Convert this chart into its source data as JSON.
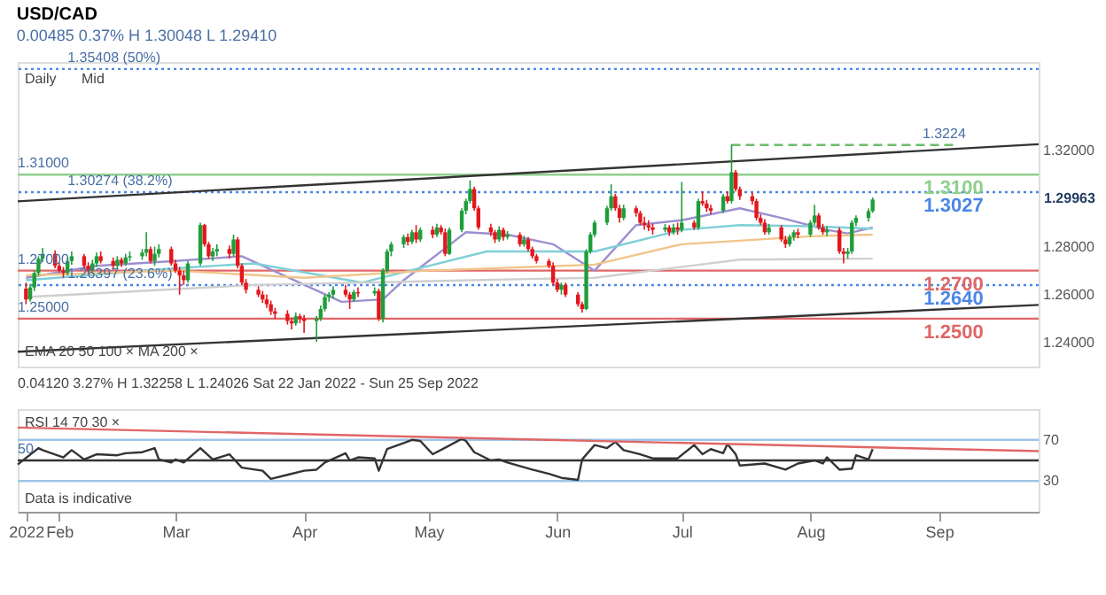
{
  "chart_data": [
    {
      "type": "candlestick",
      "title": "USD/CAD",
      "subtitle": "0.00485 0.37% H 1.30048 L 1.29410",
      "colors": [
        "#e4161c",
        "#1e9e3a",
        "#1e9e3a",
        "#1e9e3a",
        "#1e9e3a",
        "#e4161c",
        "#e4161c",
        "#e4161c",
        "#1e9e3a",
        "#1e9e3a",
        "#e4161c",
        "#e4161c",
        "#1e9e3a",
        "#1e9e3a",
        "#e4161c",
        "#e4161c",
        "#1e9e3a",
        "#e4161c",
        "#1e9e3a",
        "#1e9e3a",
        "#1e9e3a",
        "#1e9e3a",
        "#e4161c",
        "#1e9e3a",
        "#1e9e3a",
        "#e4161c",
        "#e4161c",
        "#e4161c",
        "#e4161c",
        "#1e9e3a",
        "#1e9e3a",
        "#e4161c",
        "#e4161c",
        "#1e9e3a",
        "#1e9e3a",
        "#e4161c",
        "#1e9e3a",
        "#e4161c",
        "#e4161c",
        "#e4161c",
        "#e4161c",
        "#e4161c",
        "#e4161c",
        "#e4161c",
        "#e4161c",
        "#e4161c",
        "#e4161c",
        "#1e9e3a",
        "#e4161c",
        "#e4161c",
        "#1e9e3a",
        "#1e9e3a",
        "#1e9e3a",
        "#1e9e3a",
        "#1e9e3a",
        "#e4161c",
        "#e4161c",
        "#1e9e3a",
        "#e4161c",
        "#1e9e3a",
        "#e4161c",
        "#1e9e3a",
        "#1e9e3a",
        "#1e9e3a",
        "#1e9e3a",
        "#e4161c",
        "#1e9e3a",
        "#e4161c",
        "#1e9e3a",
        "#e4161c",
        "#1e9e3a",
        "#e4161c",
        "#e4161c",
        "#1e9e3a",
        "#1e9e3a",
        "#1e9e3a",
        "#1e9e3a",
        "#e4161c",
        "#e4161c",
        "#e4161c",
        "#e4161c",
        "#1e9e3a",
        "#e4161c",
        "#1e9e3a",
        "#e4161c",
        "#1e9e3a",
        "#e4161c",
        "#e4161c",
        "#e4161c",
        "#e4161c",
        "#e4161c",
        "#e4161c",
        "#1e9e3a",
        "#e4161c",
        "#e4161c",
        "#e4161c",
        "#1e9e3a",
        "#1e9e3a",
        "#1e9e3a",
        "#1e9e3a",
        "#1e9e3a",
        "#e4161c",
        "#e4161c",
        "#1e9e3a",
        "#e4161c",
        "#e4161c",
        "#e4161c",
        "#e4161c",
        "#e4161c",
        "#1e9e3a",
        "#e4161c",
        "#1e9e3a",
        "#e4161c",
        "#1e9e3a",
        "#e4161c",
        "#1e9e3a",
        "#e4161c",
        "#e4161c",
        "#e4161c",
        "#1e9e3a",
        "#e4161c",
        "#1e9e3a",
        "#e4161c",
        "#e4161c",
        "#e4161c",
        "#e4161c",
        "#e4161c",
        "#e4161c",
        "#1e9e3a",
        "#e4161c",
        "#e4161c",
        "#1e9e3a",
        "#1e9e3a",
        "#e4161c",
        "#1e9e3a",
        "#1e9e3a",
        "#e4161c",
        "#e4161c",
        "#1e9e3a",
        "#e4161c",
        "#e4161c",
        "#1e9e3a",
        "#1e9e3a",
        "#1e9e3a",
        "#1e9e3a",
        "#1e9e3a"
      ],
      "x": [
        "2022-01-24",
        "2022-01-25",
        "2022-01-26",
        "2022-01-27",
        "2022-01-28",
        "2022-01-31",
        "2022-02-01",
        "2022-02-02",
        "2022-02-03",
        "2022-02-04",
        "2022-02-07",
        "2022-02-08",
        "2022-02-09",
        "2022-02-10",
        "2022-02-11",
        "2022-02-14",
        "2022-02-15",
        "2022-02-16",
        "2022-02-17",
        "2022-02-18",
        "2022-02-21",
        "2022-02-22",
        "2022-02-23",
        "2022-02-24",
        "2022-02-25",
        "2022-02-28",
        "2022-03-01",
        "2022-03-02",
        "2022-03-03",
        "2022-03-04",
        "2022-03-07",
        "2022-03-08",
        "2022-03-09",
        "2022-03-10",
        "2022-03-11",
        "2022-03-14",
        "2022-03-15",
        "2022-03-16",
        "2022-03-17",
        "2022-03-18",
        "2022-03-21",
        "2022-03-22",
        "2022-03-23",
        "2022-03-24",
        "2022-03-25",
        "2022-03-28",
        "2022-03-29",
        "2022-03-30",
        "2022-03-31",
        "2022-04-01",
        "2022-04-04",
        "2022-04-05",
        "2022-04-06",
        "2022-04-07",
        "2022-04-08",
        "2022-04-11",
        "2022-04-12",
        "2022-04-13",
        "2022-04-14",
        "2022-04-18",
        "2022-04-19",
        "2022-04-20",
        "2022-04-21",
        "2022-04-22",
        "2022-04-25",
        "2022-04-26",
        "2022-04-27",
        "2022-04-28",
        "2022-04-29",
        "2022-05-02",
        "2022-05-03",
        "2022-05-04",
        "2022-05-05",
        "2022-05-06",
        "2022-05-09",
        "2022-05-10",
        "2022-05-11",
        "2022-05-12",
        "2022-05-13",
        "2022-05-16",
        "2022-05-17",
        "2022-05-18",
        "2022-05-19",
        "2022-05-20",
        "2022-05-23",
        "2022-05-24",
        "2022-05-25",
        "2022-05-26",
        "2022-05-27",
        "2022-05-30",
        "2022-05-31",
        "2022-06-01",
        "2022-06-02",
        "2022-06-03",
        "2022-06-06",
        "2022-06-07",
        "2022-06-08",
        "2022-06-09",
        "2022-06-10",
        "2022-06-13",
        "2022-06-14",
        "2022-06-15",
        "2022-06-16",
        "2022-06-17",
        "2022-06-20",
        "2022-06-21",
        "2022-06-22",
        "2022-06-23",
        "2022-06-24",
        "2022-06-27",
        "2022-06-28",
        "2022-06-29",
        "2022-06-30",
        "2022-07-01",
        "2022-07-04",
        "2022-07-05",
        "2022-07-06",
        "2022-07-07",
        "2022-07-08",
        "2022-07-11",
        "2022-07-12",
        "2022-07-13",
        "2022-07-14",
        "2022-07-15",
        "2022-07-18",
        "2022-07-19",
        "2022-07-20",
        "2022-07-21",
        "2022-07-22",
        "2022-07-25",
        "2022-07-26",
        "2022-07-27",
        "2022-07-28",
        "2022-07-29",
        "2022-08-01",
        "2022-08-02",
        "2022-08-03",
        "2022-08-04",
        "2022-08-05",
        "2022-08-08",
        "2022-08-09",
        "2022-08-10",
        "2022-08-11",
        "2022-08-12",
        "2022-08-15",
        "2022-08-16"
      ],
      "ohlc": [
        [
          1.2625,
          1.265,
          1.256,
          1.258
        ],
        [
          1.258,
          1.2645,
          1.257,
          1.263
        ],
        [
          1.263,
          1.27,
          1.2615,
          1.269
        ],
        [
          1.269,
          1.276,
          1.268,
          1.275
        ],
        [
          1.275,
          1.2795,
          1.2735,
          1.277
        ],
        [
          1.277,
          1.2785,
          1.271,
          1.272
        ],
        [
          1.272,
          1.2735,
          1.269,
          1.27
        ],
        [
          1.27,
          1.2715,
          1.267,
          1.269
        ],
        [
          1.269,
          1.2755,
          1.268,
          1.274
        ],
        [
          1.274,
          1.278,
          1.2725,
          1.276
        ],
        [
          1.276,
          1.277,
          1.271,
          1.272
        ],
        [
          1.272,
          1.2735,
          1.269,
          1.27
        ],
        [
          1.27,
          1.2745,
          1.269,
          1.273
        ],
        [
          1.273,
          1.2775,
          1.2715,
          1.276
        ],
        [
          1.276,
          1.278,
          1.273,
          1.274
        ],
        [
          1.274,
          1.2755,
          1.2705,
          1.272
        ],
        [
          1.272,
          1.276,
          1.271,
          1.2745
        ],
        [
          1.2745,
          1.2755,
          1.2715,
          1.273
        ],
        [
          1.273,
          1.277,
          1.272,
          1.2755
        ],
        [
          1.2755,
          1.278,
          1.274,
          1.276
        ],
        [
          1.276,
          1.279,
          1.2745,
          1.2775
        ],
        [
          1.2775,
          1.286,
          1.276,
          1.279
        ],
        [
          1.279,
          1.28,
          1.273,
          1.274
        ],
        [
          1.274,
          1.28,
          1.272,
          1.277
        ],
        [
          1.277,
          1.281,
          1.2755,
          1.279
        ],
        [
          1.279,
          1.28,
          1.272,
          1.273
        ],
        [
          1.273,
          1.2745,
          1.269,
          1.27
        ],
        [
          1.27,
          1.2715,
          1.26,
          1.268
        ],
        [
          1.268,
          1.27,
          1.264,
          1.266
        ],
        [
          1.266,
          1.274,
          1.265,
          1.273
        ],
        [
          1.273,
          1.29,
          1.272,
          1.289
        ],
        [
          1.289,
          1.2895,
          1.28,
          1.281
        ],
        [
          1.281,
          1.282,
          1.275,
          1.276
        ],
        [
          1.276,
          1.2795,
          1.274,
          1.278
        ],
        [
          1.278,
          1.281,
          1.276,
          1.279
        ],
        [
          1.279,
          1.2805,
          1.275,
          1.277
        ],
        [
          1.277,
          1.285,
          1.276,
          1.283
        ],
        [
          1.283,
          1.284,
          1.271,
          1.272
        ],
        [
          1.272,
          1.273,
          1.264,
          1.265
        ],
        [
          1.265,
          1.2665,
          1.2605,
          1.262
        ],
        [
          1.262,
          1.2635,
          1.259,
          1.26
        ],
        [
          1.26,
          1.2615,
          1.2565,
          1.258
        ],
        [
          1.258,
          1.26,
          1.2545,
          1.256
        ],
        [
          1.256,
          1.2575,
          1.2515,
          1.253
        ],
        [
          1.253,
          1.2545,
          1.25,
          1.252
        ],
        [
          1.252,
          1.2535,
          1.2475,
          1.249
        ],
        [
          1.249,
          1.2505,
          1.2455,
          1.248
        ],
        [
          1.248,
          1.2525,
          1.247,
          1.251
        ],
        [
          1.251,
          1.252,
          1.248,
          1.25
        ],
        [
          1.25,
          1.2515,
          1.244,
          1.249
        ],
        [
          1.249,
          1.251,
          1.24026,
          1.25
        ],
        [
          1.25,
          1.2555,
          1.249,
          1.254
        ],
        [
          1.254,
          1.26,
          1.253,
          1.259
        ],
        [
          1.259,
          1.261,
          1.257,
          1.26
        ],
        [
          1.26,
          1.2635,
          1.2585,
          1.262
        ],
        [
          1.262,
          1.264,
          1.259,
          1.26
        ],
        [
          1.26,
          1.261,
          1.254,
          1.258
        ],
        [
          1.258,
          1.262,
          1.257,
          1.261
        ],
        [
          1.261,
          1.263,
          1.259,
          1.2605
        ],
        [
          1.2605,
          1.263,
          1.2595,
          1.2615
        ],
        [
          1.2615,
          1.2625,
          1.249,
          1.25
        ],
        [
          1.25,
          1.271,
          1.2485,
          1.27
        ],
        [
          1.27,
          1.279,
          1.269,
          1.278
        ],
        [
          1.278,
          1.282,
          1.276,
          1.281
        ],
        [
          1.281,
          1.285,
          1.2795,
          1.284
        ],
        [
          1.284,
          1.2855,
          1.2805,
          1.282
        ],
        [
          1.282,
          1.287,
          1.281,
          1.286
        ],
        [
          1.286,
          1.289,
          1.2815,
          1.283
        ],
        [
          1.283,
          1.288,
          1.282,
          1.287
        ],
        [
          1.287,
          1.2885,
          1.2835,
          1.285
        ],
        [
          1.285,
          1.2895,
          1.284,
          1.288
        ],
        [
          1.288,
          1.289,
          1.285,
          1.286
        ],
        [
          1.286,
          1.2875,
          1.276,
          1.277
        ],
        [
          1.277,
          1.288,
          1.2765,
          1.287
        ],
        [
          1.287,
          1.296,
          1.286,
          1.295
        ],
        [
          1.295,
          1.3,
          1.2935,
          1.299
        ],
        [
          1.299,
          1.3076,
          1.298,
          1.304
        ],
        [
          1.304,
          1.305,
          1.295,
          1.296
        ],
        [
          1.296,
          1.297,
          1.287,
          1.288
        ],
        [
          1.288,
          1.2895,
          1.2845,
          1.286
        ],
        [
          1.286,
          1.287,
          1.2815,
          1.283
        ],
        [
          1.283,
          1.2885,
          1.282,
          1.287
        ],
        [
          1.287,
          1.288,
          1.2825,
          1.284
        ],
        [
          1.284,
          1.2865,
          1.283,
          1.285
        ],
        [
          1.285,
          1.286,
          1.28,
          1.281
        ],
        [
          1.281,
          1.2845,
          1.28,
          1.283
        ],
        [
          1.283,
          1.284,
          1.278,
          1.279
        ],
        [
          1.279,
          1.28,
          1.275,
          1.276
        ],
        [
          1.276,
          1.277,
          1.273,
          1.274
        ],
        [
          1.274,
          1.275,
          1.271,
          1.272
        ],
        [
          1.272,
          1.2735,
          1.264,
          1.265
        ],
        [
          1.265,
          1.2665,
          1.261,
          1.262
        ],
        [
          1.262,
          1.265,
          1.26,
          1.264
        ],
        [
          1.264,
          1.265,
          1.259,
          1.26
        ],
        [
          1.26,
          1.261,
          1.255,
          1.256
        ],
        [
          1.256,
          1.257,
          1.2525,
          1.254
        ],
        [
          1.254,
          1.279,
          1.2535,
          1.278
        ],
        [
          1.278,
          1.286,
          1.277,
          1.285
        ],
        [
          1.285,
          1.291,
          1.284,
          1.29
        ],
        [
          1.29,
          1.297,
          1.289,
          1.296
        ],
        [
          1.296,
          1.306,
          1.295,
          1.301
        ],
        [
          1.301,
          1.302,
          1.295,
          1.296
        ],
        [
          1.296,
          1.2975,
          1.29,
          1.292
        ],
        [
          1.292,
          1.2975,
          1.291,
          1.296
        ],
        [
          1.296,
          1.297,
          1.2925,
          1.294
        ],
        [
          1.294,
          1.295,
          1.289,
          1.29
        ],
        [
          1.29,
          1.2925,
          1.287,
          1.289
        ],
        [
          1.289,
          1.291,
          1.2865,
          1.288
        ],
        [
          1.288,
          1.2895,
          1.285,
          1.287
        ],
        [
          1.287,
          1.2895,
          1.286,
          1.288
        ],
        [
          1.288,
          1.289,
          1.2845,
          1.286
        ],
        [
          1.286,
          1.2895,
          1.285,
          1.288
        ],
        [
          1.288,
          1.29,
          1.285,
          1.287
        ],
        [
          1.287,
          1.307,
          1.286,
          1.29
        ],
        [
          1.29,
          1.291,
          1.287,
          1.288
        ],
        [
          1.288,
          1.3,
          1.287,
          1.299
        ],
        [
          1.299,
          1.303,
          1.297,
          1.298
        ],
        [
          1.298,
          1.2995,
          1.2945,
          1.296
        ],
        [
          1.296,
          1.2975,
          1.2935,
          1.295
        ],
        [
          1.295,
          1.302,
          1.294,
          1.301
        ],
        [
          1.301,
          1.303,
          1.298,
          1.299
        ],
        [
          1.299,
          1.32258,
          1.298,
          1.311
        ],
        [
          1.311,
          1.312,
          1.303,
          1.304
        ],
        [
          1.304,
          1.305,
          1.2995,
          1.301
        ],
        [
          1.301,
          1.3025,
          1.2975,
          1.299
        ],
        [
          1.299,
          1.3,
          1.291,
          1.292
        ],
        [
          1.292,
          1.2935,
          1.289,
          1.29
        ],
        [
          1.29,
          1.2915,
          1.285,
          1.286
        ],
        [
          1.286,
          1.2895,
          1.285,
          1.288
        ],
        [
          1.288,
          1.289,
          1.282,
          1.283
        ],
        [
          1.283,
          1.2845,
          1.2795,
          1.281
        ],
        [
          1.281,
          1.285,
          1.28,
          1.284
        ],
        [
          1.284,
          1.287,
          1.2825,
          1.286
        ],
        [
          1.286,
          1.2875,
          1.2835,
          1.285
        ],
        [
          1.285,
          1.291,
          1.284,
          1.29
        ],
        [
          1.29,
          1.2975,
          1.289,
          1.293
        ],
        [
          1.293,
          1.294,
          1.287,
          1.288
        ],
        [
          1.288,
          1.2895,
          1.285,
          1.286
        ],
        [
          1.286,
          1.2885,
          1.2845,
          1.287
        ],
        [
          1.287,
          1.288,
          1.277,
          1.278
        ],
        [
          1.278,
          1.2795,
          1.273,
          1.277
        ],
        [
          1.277,
          1.2795,
          1.275,
          1.278
        ],
        [
          1.278,
          1.291,
          1.277,
          1.29
        ],
        [
          1.29,
          1.293,
          1.2885,
          1.292
        ],
        [
          1.292,
          1.296,
          1.2905,
          1.29478
        ],
        [
          1.29478,
          1.30048,
          1.2941,
          1.29963
        ]
      ],
      "series": [
        {
          "type": "line",
          "color": "#9d8fd0",
          "x": [
            "2022-01-24",
            "2022-02-10",
            "2022-03-01",
            "2022-03-17",
            "2022-04-10",
            "2022-04-20",
            "2022-04-25",
            "2022-05-10",
            "2022-05-20",
            "2022-05-31",
            "2022-06-10",
            "2022-06-20",
            "2022-07-01",
            "2022-07-15",
            "2022-07-25",
            "2022-08-05",
            "2022-08-10",
            "2022-08-16"
          ],
          "values": [
            1.267,
            1.272,
            1.274,
            1.276,
            1.257,
            1.258,
            1.266,
            1.286,
            1.285,
            1.281,
            1.27,
            1.289,
            1.291,
            1.296,
            1.292,
            1.287,
            1.2855,
            1.288
          ]
        },
        {
          "type": "line",
          "color": "#7fcfd8",
          "x": [
            "2022-01-24",
            "2022-03-01",
            "2022-03-20",
            "2022-04-15",
            "2022-05-15",
            "2022-06-10",
            "2022-07-01",
            "2022-07-15",
            "2022-08-01",
            "2022-08-16"
          ],
          "values": [
            1.266,
            1.271,
            1.273,
            1.265,
            1.278,
            1.278,
            1.287,
            1.289,
            1.2885,
            1.2875
          ]
        },
        {
          "type": "line",
          "color": "#f2c48a",
          "x": [
            "2022-01-24",
            "2022-03-01",
            "2022-04-01",
            "2022-05-01",
            "2022-06-10",
            "2022-07-01",
            "2022-08-01",
            "2022-08-16"
          ],
          "values": [
            1.268,
            1.27,
            1.267,
            1.27,
            1.2725,
            1.281,
            1.2843,
            1.285
          ]
        },
        {
          "type": "line",
          "color": "#cfcfcf",
          "x": [
            "2022-01-24",
            "2022-03-20",
            "2022-05-25",
            "2022-06-10",
            "2022-07-15",
            "2022-08-16"
          ],
          "values": [
            1.259,
            1.264,
            1.2665,
            1.267,
            1.2746,
            1.275
          ]
        },
        {
          "type": "line",
          "color": "#333333",
          "x": [
            "2022-01-22",
            "2022-09-25"
          ],
          "values": [
            1.2989,
            1.3227
          ]
        },
        {
          "type": "line",
          "color": "#333333",
          "x": [
            "2022-01-22",
            "2022-09-25"
          ],
          "values": [
            1.2362,
            1.2557
          ]
        },
        {
          "type": "line",
          "color": "#6abf69",
          "line_style": "dashed",
          "x": [
            "2022-07-13",
            "2022-09-05"
          ],
          "values": [
            1.3224,
            1.3224
          ]
        }
      ],
      "ref_lines": [
        {
          "axis": "y",
          "value": 1.35408,
          "label": null,
          "color": "#4a86e8",
          "line_style": "dotted"
        },
        {
          "axis": "y",
          "value": 1.31,
          "label": "1.3100",
          "color": "#8fcf8c",
          "line_style": "solid"
        },
        {
          "axis": "y",
          "value": 1.30274,
          "label": "1.3027",
          "color": "#4a86e8",
          "line_style": "dotted"
        },
        {
          "axis": "y",
          "value": 1.27,
          "label": "1.2700",
          "color": "#e06666",
          "line_style": "solid"
        },
        {
          "axis": "y",
          "value": 1.26397,
          "label": "1.2640",
          "color": "#4a86e8",
          "line_style": "dotted"
        },
        {
          "axis": "y",
          "value": 1.25,
          "label": "1.2500",
          "color": "#e06666",
          "line_style": "solid"
        }
      ],
      "annotations": [
        "Daily",
        "Mid",
        {
          "text": "1.35408 (50%)",
          "x": "2022-02-03",
          "y": 1.35408
        },
        {
          "text": "1.31000",
          "x": "2022-01-22",
          "y": 1.31
        },
        {
          "text": "1.30274 (38.2%)",
          "x": "2022-02-03",
          "y": 1.30274
        },
        {
          "text": "1.27000",
          "x": "2022-01-22",
          "y": 1.27
        },
        {
          "text": "1.26397 (23.6%)",
          "x": "2022-02-03",
          "y": 1.26397
        },
        {
          "text": "1.25000",
          "x": "2022-01-22",
          "y": 1.25
        },
        {
          "text": "1.3224",
          "x": "2022-08-28",
          "y": 1.3224
        },
        "1.29963",
        "EMA 20 50 100 ×   MA 200 ×",
        "0.04120 3.27% H 1.32258 L 1.24026 Sat 22 Jan 2022 - Sun 25 Sep 2022"
      ],
      "xlim": [
        "2022-01-22",
        "2022-09-25"
      ],
      "ylim": [
        1.23,
        1.357
      ],
      "yticks": [
        {
          "value": 1.24,
          "label": "1.24000"
        },
        {
          "value": 1.26,
          "label": "1.26000"
        },
        {
          "value": 1.28,
          "label": "1.28000"
        },
        {
          "value": 1.32,
          "label": "1.32000"
        }
      ],
      "tick_labels": "y"
    },
    {
      "type": "line",
      "series": [
        {
          "color": "#333333",
          "x": [
            "2022-01-22",
            "2022-01-27",
            "2022-01-28",
            "2022-02-02",
            "2022-02-04",
            "2022-02-07",
            "2022-02-10",
            "2022-02-15",
            "2022-02-17",
            "2022-02-21",
            "2022-02-24",
            "2022-02-25",
            "2022-02-28",
            "2022-03-01",
            "2022-03-03",
            "2022-03-07",
            "2022-03-10",
            "2022-03-14",
            "2022-03-17",
            "2022-03-22",
            "2022-03-24",
            "2022-03-28",
            "2022-04-01",
            "2022-04-04",
            "2022-04-06",
            "2022-04-11",
            "2022-04-12",
            "2022-04-14",
            "2022-04-18",
            "2022-04-19",
            "2022-04-21",
            "2022-04-25",
            "2022-04-27",
            "2022-04-29",
            "2022-05-02",
            "2022-05-09",
            "2022-05-10",
            "2022-05-12",
            "2022-05-16",
            "2022-05-18",
            "2022-05-20",
            "2022-05-26",
            "2022-05-30",
            "2022-06-02",
            "2022-06-06",
            "2022-06-07",
            "2022-06-10",
            "2022-06-13",
            "2022-06-15",
            "2022-06-17",
            "2022-06-21",
            "2022-06-24",
            "2022-06-30",
            "2022-07-04",
            "2022-07-06",
            "2022-07-08",
            "2022-07-11",
            "2022-07-12",
            "2022-07-14",
            "2022-07-15",
            "2022-07-21",
            "2022-07-26",
            "2022-07-29",
            "2022-08-02",
            "2022-08-04",
            "2022-08-05",
            "2022-08-08",
            "2022-08-11",
            "2022-08-12",
            "2022-08-15",
            "2022-08-16"
          ],
          "values": [
            46,
            62,
            60,
            53,
            60,
            51,
            56,
            55,
            57,
            58,
            62,
            51,
            48,
            51,
            48,
            62,
            51,
            56,
            43,
            40,
            32,
            36,
            40,
            41,
            48,
            57,
            50,
            53,
            52,
            40,
            61,
            67,
            70,
            69,
            56,
            71,
            69,
            58,
            50,
            51,
            48,
            41,
            37,
            33,
            31,
            51,
            65,
            62,
            68,
            60,
            56,
            52,
            52,
            65,
            56,
            61,
            57,
            66,
            56,
            45,
            47,
            41,
            47,
            50,
            47,
            53,
            41,
            42,
            55,
            51,
            61
          ]
        },
        {
          "color": "#e06666",
          "x": [
            "2022-01-22",
            "2022-09-25"
          ],
          "values": [
            82,
            59
          ]
        }
      ],
      "ref_lines": [
        {
          "axis": "y",
          "value": 70,
          "label": null,
          "color": "#9fc5e8",
          "line_style": "solid"
        },
        {
          "axis": "y",
          "value": 50,
          "label": null,
          "color": "#333333",
          "line_style": "solid"
        },
        {
          "axis": "y",
          "value": 30,
          "label": null,
          "color": "#9fc5e8",
          "line_style": "solid"
        }
      ],
      "annotations": [
        "RSI 14 70 30 ×",
        "Data is indicative",
        {
          "text": "50",
          "x": "2022-01-22",
          "y": 50
        }
      ],
      "xlim": [
        "2022-01-22",
        "2022-09-25"
      ],
      "ylim": [
        0,
        100
      ],
      "yticks": [
        30,
        70
      ],
      "xticks": [
        {
          "value": "2022-01-24",
          "label": "2022"
        },
        {
          "value": "2022-02-01",
          "label": "Feb"
        },
        {
          "value": "2022-03-01",
          "label": "Mar"
        },
        {
          "value": "2022-04-01",
          "label": "Apr"
        },
        {
          "value": "2022-05-01",
          "label": "May"
        },
        {
          "value": "2022-06-01",
          "label": "Jun"
        },
        {
          "value": "2022-07-01",
          "label": "Jul"
        },
        {
          "value": "2022-08-01",
          "label": "Aug"
        },
        {
          "value": "2022-09-01",
          "label": "Sep"
        }
      ]
    }
  ]
}
